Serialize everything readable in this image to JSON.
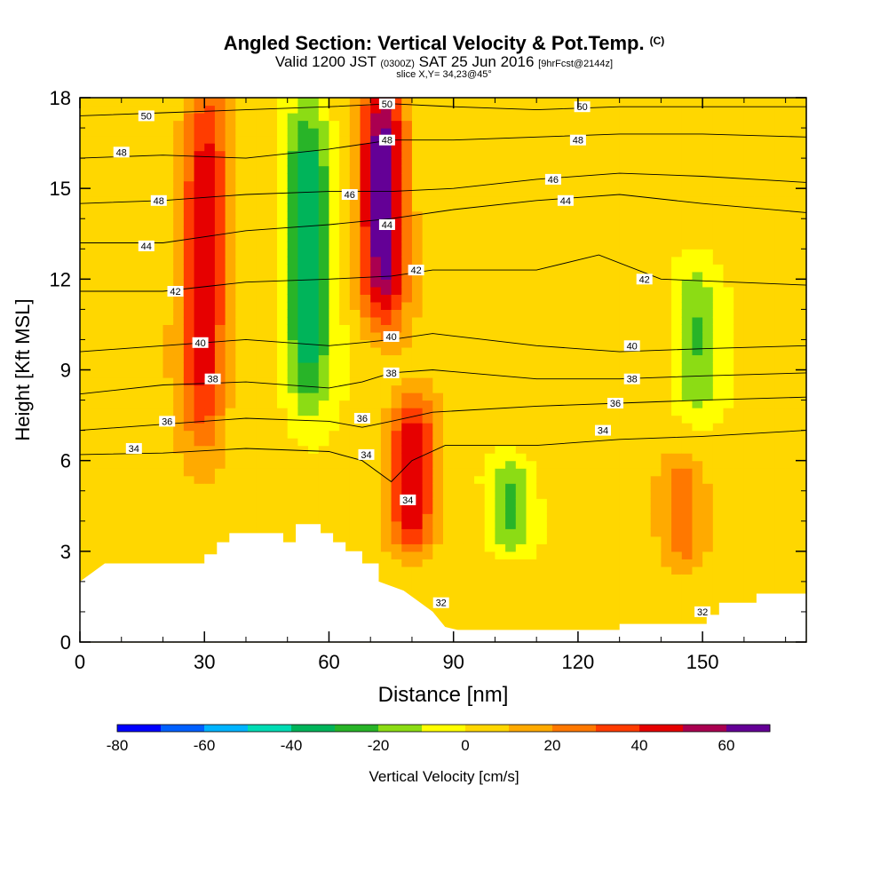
{
  "title": {
    "main": "Angled Section: Vertical Velocity & Pot.Temp.",
    "units": "(C)",
    "valid_prefix": "Valid 1200 JST",
    "valid_utc": "(0300Z)",
    "valid_date": "SAT 25 Jun 2016",
    "forecast": "[9hrFcst@2144z]",
    "slice": "slice X,Y= 34,23@45°"
  },
  "chart_data": {
    "type": "heatmap",
    "xlabel": "Distance [nm]",
    "ylabel": "Height [Kft MSL]",
    "xlim": [
      0,
      175
    ],
    "ylim": [
      0,
      18
    ],
    "x_ticks": [
      0,
      30,
      60,
      90,
      120,
      150
    ],
    "y_ticks": [
      0,
      3,
      6,
      9,
      12,
      15,
      18
    ],
    "colorbar": {
      "label": "Vertical Velocity [cm/s]",
      "min": -80,
      "max": 70,
      "step": 10,
      "tick_values": [
        -80,
        -60,
        -40,
        -20,
        0,
        20,
        40,
        60
      ],
      "colors": [
        "#0000ff",
        "#0060ff",
        "#00b4ff",
        "#00dcb4",
        "#00b45a",
        "#28b428",
        "#8cdc14",
        "#ffff00",
        "#ffd700",
        "#ffaa00",
        "#ff7800",
        "#ff3c00",
        "#e60000",
        "#aa0050",
        "#640096"
      ]
    },
    "velocity_features": [
      {
        "x_center": 30,
        "height_range": [
          7,
          18
        ],
        "value": 45,
        "note": "updraft"
      },
      {
        "x_center": 55,
        "height_range": [
          8,
          17
        ],
        "value": -45,
        "note": "downdraft"
      },
      {
        "x_center": 73,
        "height_range": [
          11,
          18
        ],
        "value": 65,
        "note": "updraft"
      },
      {
        "x_center": 80,
        "height_range": [
          3.5,
          7.5
        ],
        "value": 45,
        "note": "updraft"
      },
      {
        "x_center": 104,
        "height_range": [
          3.5,
          5.5
        ],
        "value": -25,
        "note": "downdraft"
      },
      {
        "x_center": 145,
        "height_range": [
          3,
          5.5
        ],
        "value": 25,
        "note": "updraft"
      },
      {
        "x_center": 148,
        "height_range": [
          8,
          12
        ],
        "value": -25,
        "note": "downdraft"
      }
    ],
    "isentropes": [
      {
        "value": 34,
        "heights": [
          [
            0,
            6.2
          ],
          [
            20,
            6.25
          ],
          [
            40,
            6.4
          ],
          [
            60,
            6.3
          ],
          [
            68,
            6.0
          ],
          [
            75,
            5.3
          ],
          [
            80,
            6.0
          ],
          [
            88,
            6.5
          ],
          [
            110,
            6.5
          ],
          [
            130,
            6.7
          ],
          [
            150,
            6.8
          ],
          [
            175,
            7.0
          ]
        ]
      },
      {
        "value": 36,
        "heights": [
          [
            0,
            7.0
          ],
          [
            20,
            7.2
          ],
          [
            40,
            7.4
          ],
          [
            60,
            7.3
          ],
          [
            68,
            7.1
          ],
          [
            75,
            7.3
          ],
          [
            85,
            7.6
          ],
          [
            110,
            7.8
          ],
          [
            130,
            7.9
          ],
          [
            150,
            8.0
          ],
          [
            175,
            8.1
          ]
        ]
      },
      {
        "value": 38,
        "heights": [
          [
            0,
            8.2
          ],
          [
            20,
            8.5
          ],
          [
            40,
            8.6
          ],
          [
            60,
            8.4
          ],
          [
            68,
            8.6
          ],
          [
            75,
            8.9
          ],
          [
            85,
            9.0
          ],
          [
            110,
            8.7
          ],
          [
            130,
            8.7
          ],
          [
            150,
            8.8
          ],
          [
            175,
            8.9
          ]
        ]
      },
      {
        "value": 40,
        "heights": [
          [
            0,
            9.6
          ],
          [
            20,
            9.8
          ],
          [
            40,
            10.0
          ],
          [
            60,
            9.8
          ],
          [
            68,
            9.9
          ],
          [
            75,
            10.0
          ],
          [
            85,
            10.2
          ],
          [
            110,
            9.8
          ],
          [
            130,
            9.6
          ],
          [
            150,
            9.7
          ],
          [
            175,
            9.8
          ]
        ]
      },
      {
        "value": 42,
        "heights": [
          [
            0,
            11.6
          ],
          [
            20,
            11.6
          ],
          [
            40,
            11.9
          ],
          [
            60,
            12.0
          ],
          [
            75,
            12.1
          ],
          [
            85,
            12.3
          ],
          [
            110,
            12.3
          ],
          [
            125,
            12.8
          ],
          [
            140,
            12.0
          ],
          [
            175,
            11.8
          ]
        ]
      },
      {
        "value": 44,
        "heights": [
          [
            0,
            13.2
          ],
          [
            20,
            13.2
          ],
          [
            40,
            13.6
          ],
          [
            60,
            13.8
          ],
          [
            75,
            14.0
          ],
          [
            90,
            14.3
          ],
          [
            110,
            14.6
          ],
          [
            130,
            14.8
          ],
          [
            150,
            14.5
          ],
          [
            175,
            14.2
          ]
        ]
      },
      {
        "value": 46,
        "heights": [
          [
            0,
            14.5
          ],
          [
            20,
            14.6
          ],
          [
            40,
            14.8
          ],
          [
            60,
            14.9
          ],
          [
            75,
            14.9
          ],
          [
            90,
            15.0
          ],
          [
            110,
            15.3
          ],
          [
            130,
            15.5
          ],
          [
            150,
            15.4
          ],
          [
            175,
            15.2
          ]
        ]
      },
      {
        "value": 48,
        "heights": [
          [
            0,
            16.0
          ],
          [
            20,
            16.1
          ],
          [
            40,
            16.0
          ],
          [
            60,
            16.3
          ],
          [
            75,
            16.6
          ],
          [
            90,
            16.6
          ],
          [
            110,
            16.7
          ],
          [
            130,
            16.8
          ],
          [
            150,
            16.8
          ],
          [
            175,
            16.7
          ]
        ]
      },
      {
        "value": 50,
        "heights": [
          [
            0,
            17.4
          ],
          [
            20,
            17.5
          ],
          [
            40,
            17.6
          ],
          [
            60,
            17.7
          ],
          [
            75,
            17.8
          ],
          [
            90,
            17.7
          ],
          [
            110,
            17.6
          ],
          [
            130,
            17.7
          ],
          [
            150,
            17.7
          ],
          [
            175,
            17.7
          ]
        ]
      }
    ],
    "contour_labels": [
      {
        "value": 50,
        "x": 16,
        "y": 17.4
      },
      {
        "value": 48,
        "x": 10,
        "y": 16.2
      },
      {
        "value": 48,
        "x": 19,
        "y": 14.6
      },
      {
        "value": 44,
        "x": 16,
        "y": 13.1
      },
      {
        "value": 42,
        "x": 23,
        "y": 11.6
      },
      {
        "value": 40,
        "x": 29,
        "y": 9.9
      },
      {
        "value": 38,
        "x": 32,
        "y": 8.7
      },
      {
        "value": 36,
        "x": 21,
        "y": 7.3
      },
      {
        "value": 34,
        "x": 13,
        "y": 6.4
      },
      {
        "value": 50,
        "x": 74,
        "y": 17.8
      },
      {
        "value": 48,
        "x": 74,
        "y": 16.6
      },
      {
        "value": 46,
        "x": 65,
        "y": 14.8
      },
      {
        "value": 44,
        "x": 74,
        "y": 13.8
      },
      {
        "value": 42,
        "x": 81,
        "y": 12.3
      },
      {
        "value": 40,
        "x": 75,
        "y": 10.1
      },
      {
        "value": 38,
        "x": 75,
        "y": 8.9
      },
      {
        "value": 36,
        "x": 68,
        "y": 7.4
      },
      {
        "value": 34,
        "x": 69,
        "y": 6.2
      },
      {
        "value": 34,
        "x": 79,
        "y": 4.7
      },
      {
        "value": 32,
        "x": 87,
        "y": 1.3
      },
      {
        "value": 50,
        "x": 121,
        "y": 17.7
      },
      {
        "value": 48,
        "x": 120,
        "y": 16.6
      },
      {
        "value": 46,
        "x": 114,
        "y": 15.3
      },
      {
        "value": 44,
        "x": 117,
        "y": 14.6
      },
      {
        "value": 42,
        "x": 136,
        "y": 12.0
      },
      {
        "value": 40,
        "x": 133,
        "y": 9.8
      },
      {
        "value": 38,
        "x": 133,
        "y": 8.7
      },
      {
        "value": 36,
        "x": 129,
        "y": 7.9
      },
      {
        "value": 34,
        "x": 126,
        "y": 7.0
      },
      {
        "value": 32,
        "x": 150,
        "y": 1.0
      }
    ],
    "terrain": [
      [
        0,
        2.0
      ],
      [
        3,
        2.3
      ],
      [
        6,
        2.6
      ],
      [
        30,
        2.6
      ],
      [
        30,
        2.9
      ],
      [
        33,
        2.9
      ],
      [
        33,
        3.3
      ],
      [
        36,
        3.3
      ],
      [
        36,
        3.6
      ],
      [
        49,
        3.6
      ],
      [
        49,
        3.3
      ],
      [
        52,
        3.3
      ],
      [
        52,
        3.9
      ],
      [
        58,
        3.9
      ],
      [
        58,
        3.6
      ],
      [
        61,
        3.6
      ],
      [
        61,
        3.3
      ],
      [
        64,
        3.3
      ],
      [
        64,
        3.0
      ],
      [
        68,
        3.0
      ],
      [
        68,
        2.6
      ],
      [
        72,
        2.6
      ],
      [
        72,
        2.0
      ],
      [
        78,
        1.7
      ],
      [
        81,
        1.4
      ],
      [
        85,
        1.0
      ],
      [
        88,
        0.5
      ],
      [
        91,
        0.4
      ],
      [
        112,
        0.4
      ],
      [
        130,
        0.4
      ],
      [
        130,
        0.6
      ],
      [
        151,
        0.6
      ],
      [
        151,
        0.9
      ],
      [
        154,
        0.9
      ],
      [
        154,
        1.3
      ],
      [
        163,
        1.3
      ],
      [
        163,
        1.6
      ],
      [
        175,
        1.6
      ]
    ]
  }
}
